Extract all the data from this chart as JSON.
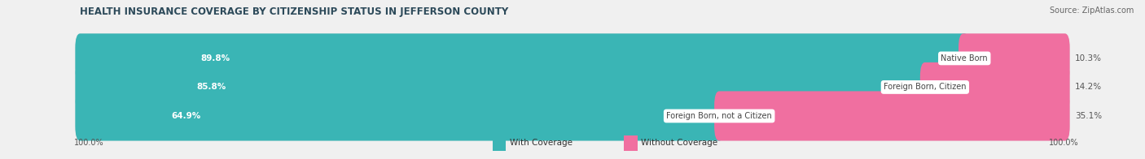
{
  "title": "HEALTH INSURANCE COVERAGE BY CITIZENSHIP STATUS IN JEFFERSON COUNTY",
  "source": "Source: ZipAtlas.com",
  "categories": [
    "Native Born",
    "Foreign Born, Citizen",
    "Foreign Born, not a Citizen"
  ],
  "with_coverage": [
    89.8,
    85.8,
    64.9
  ],
  "without_coverage": [
    10.3,
    14.2,
    35.1
  ],
  "color_with": "#3ab5b5",
  "color_without": "#f06fa0",
  "background_color": "#f0f0f0",
  "bar_background": "#e0e0e0",
  "title_fontsize": 8.5,
  "source_fontsize": 7.0,
  "value_fontsize": 7.5,
  "cat_fontsize": 7.0,
  "axis_label_fontsize": 7.0,
  "legend_fontsize": 7.5,
  "left_label": "100.0%",
  "right_label": "100.0%"
}
